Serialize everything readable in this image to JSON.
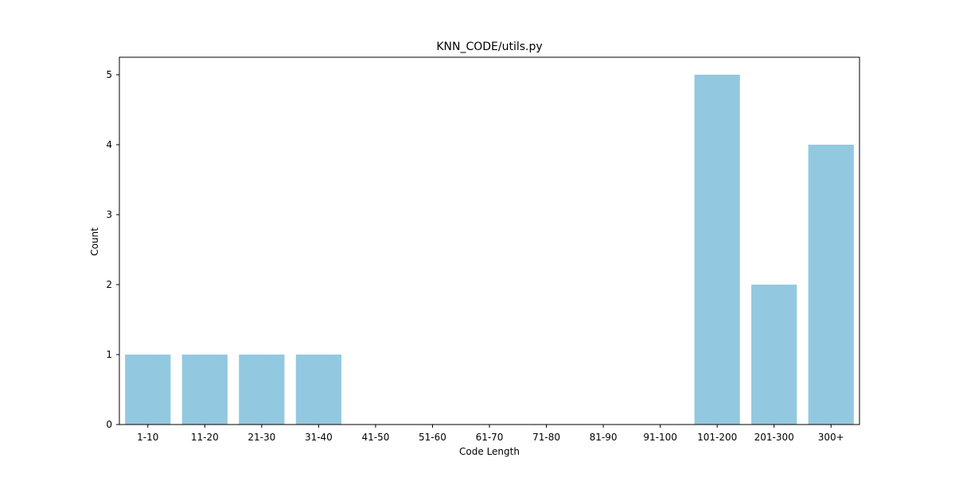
{
  "chart_data": {
    "type": "bar",
    "title": "KNN_CODE/utils.py",
    "xlabel": "Code Length",
    "ylabel": "Count",
    "categories": [
      "1-10",
      "11-20",
      "21-30",
      "31-40",
      "41-50",
      "51-60",
      "61-70",
      "71-80",
      "81-90",
      "91-100",
      "101-200",
      "201-300",
      "300+"
    ],
    "values": [
      1,
      1,
      1,
      1,
      0,
      0,
      0,
      0,
      0,
      0,
      5,
      2,
      4
    ],
    "ylim": [
      0,
      5.25
    ],
    "yticks": [
      0,
      1,
      2,
      3,
      4,
      5
    ],
    "grid": false,
    "bar_color": "#92c9e0"
  }
}
